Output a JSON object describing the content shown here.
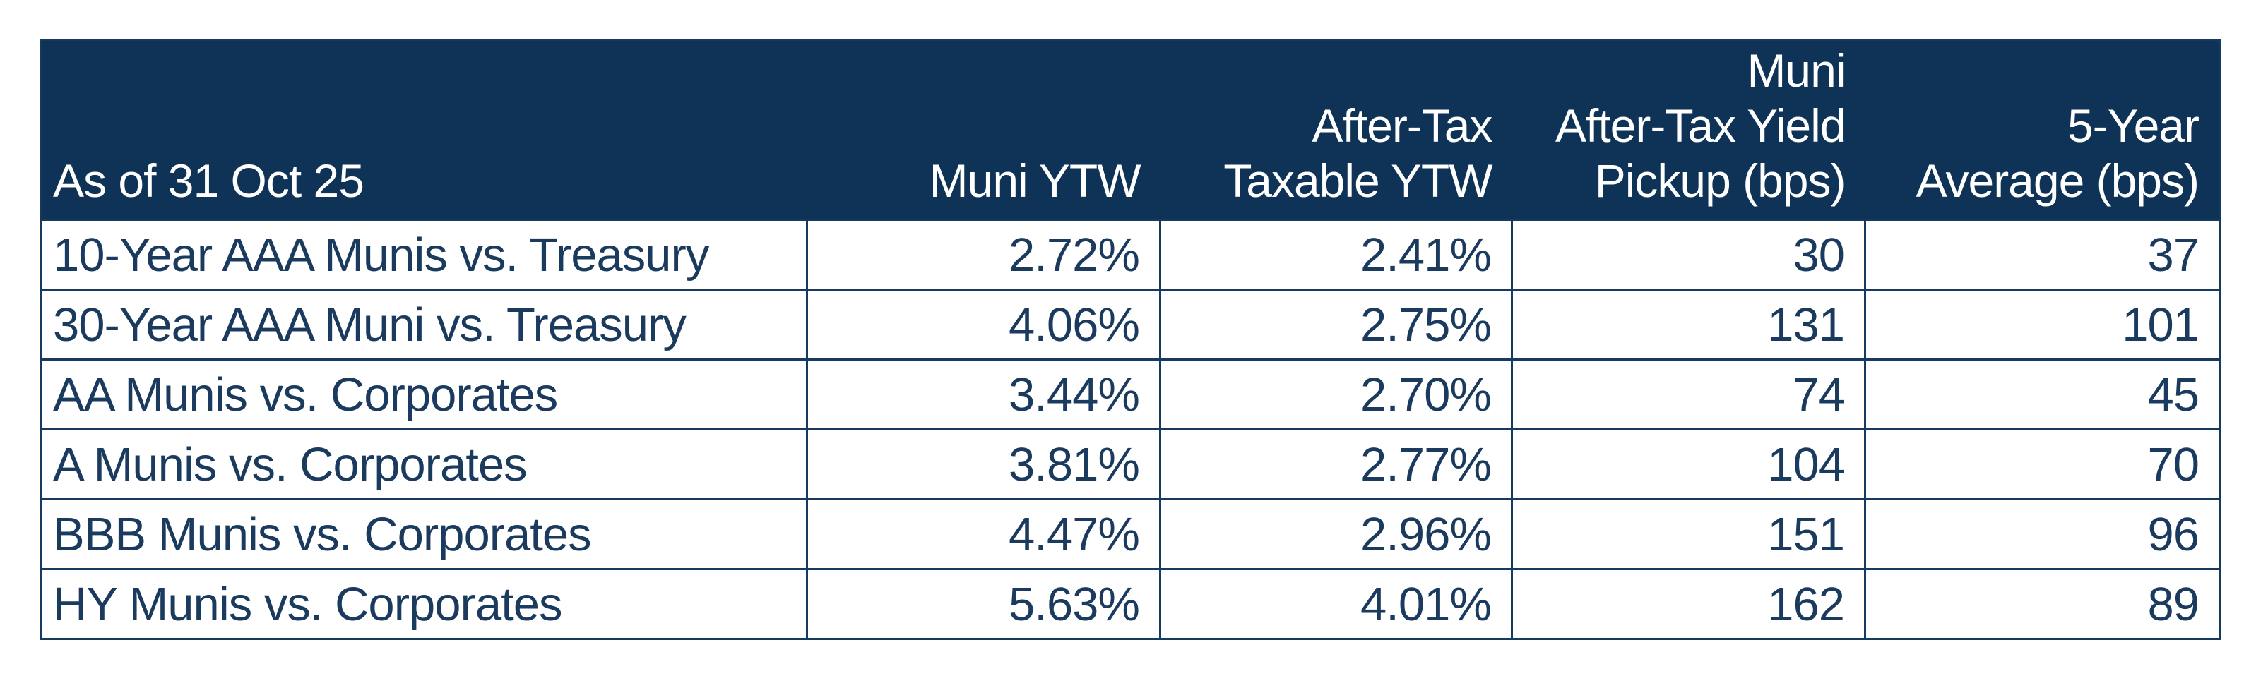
{
  "colors": {
    "header_background": "#0e3356",
    "border": "#163a5e",
    "body_text": "#1a3a5e",
    "header_text": "#ffffff",
    "page_background": "#ffffff"
  },
  "header_lines": [
    [
      "As of 31 Oct 25"
    ],
    [
      "Muni YTW"
    ],
    [
      "After-Tax",
      "Taxable YTW"
    ],
    [
      "Muni",
      "After-Tax Yield",
      "Pickup (bps)"
    ],
    [
      "5-Year",
      "Average (bps)"
    ]
  ],
  "chart_data": {
    "type": "table",
    "title": "",
    "as_of_label": "As of 31 Oct 25",
    "columns": [
      "As of 31 Oct 25",
      "Muni YTW",
      "After-Tax Taxable YTW",
      "Muni After-Tax Yield Pickup (bps)",
      "5-Year Average (bps)"
    ],
    "rows": [
      [
        "10-Year AAA Munis vs. Treasury",
        "2.72%",
        "2.41%",
        "30",
        "37"
      ],
      [
        "30-Year AAA Muni vs. Treasury",
        "4.06%",
        "2.75%",
        "131",
        "101"
      ],
      [
        "AA Munis vs. Corporates",
        "3.44%",
        "2.70%",
        "74",
        "45"
      ],
      [
        "A Munis vs. Corporates",
        "3.81%",
        "2.77%",
        "104",
        "70"
      ],
      [
        "BBB Munis vs. Corporates",
        "4.47%",
        "2.96%",
        "151",
        "96"
      ],
      [
        "HY Munis vs. Corporates",
        "5.63%",
        "4.01%",
        "162",
        "89"
      ]
    ],
    "rows_numeric": {
      "muni_ytw_pct": [
        2.72,
        4.06,
        3.44,
        3.81,
        4.47,
        5.63
      ],
      "after_tax_taxable_ytw_pct": [
        2.41,
        2.75,
        2.7,
        2.77,
        2.96,
        4.01
      ],
      "muni_after_tax_yield_pickup_bps": [
        30,
        131,
        74,
        104,
        151,
        162
      ],
      "five_year_average_bps": [
        37,
        101,
        45,
        70,
        96,
        89
      ]
    }
  }
}
